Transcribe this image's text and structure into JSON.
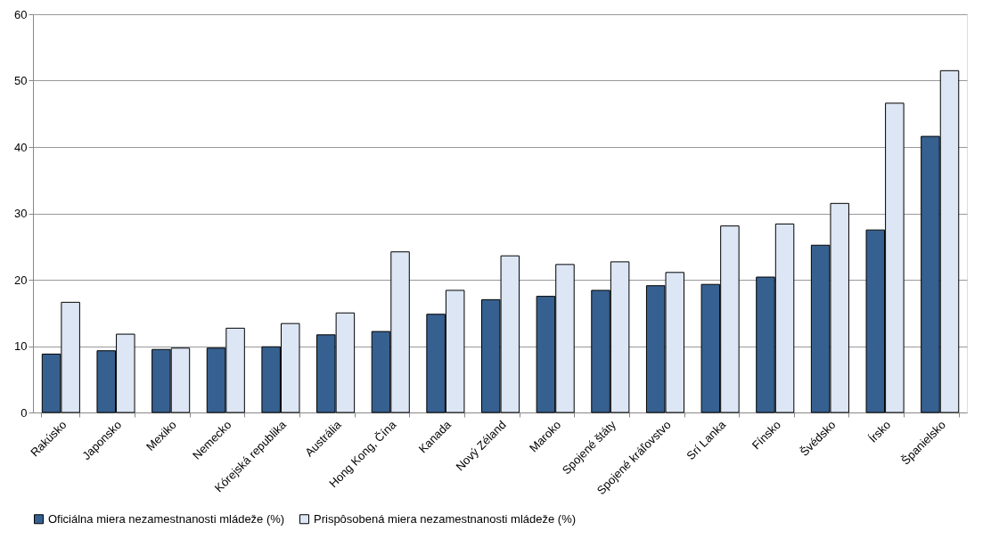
{
  "chart_data": {
    "type": "bar",
    "categories": [
      "Rakúsko",
      "Japonsko",
      "Mexiko",
      "Nemecko",
      "Kórejská republika",
      "Austrália",
      "Hong Kong, Čína",
      "Kanada",
      "Nový Zéland",
      "Maroko",
      "Spojené štáty",
      "Spojené kráľovstvo",
      "Srí Lanka",
      "Fínsko",
      "Švédsko",
      "Írsko",
      "Španielsko"
    ],
    "series": [
      {
        "name": "Oficiálna miera nezamestnanosti mládeže (%)",
        "color": "#36608f",
        "values": [
          8.8,
          9.3,
          9.5,
          9.7,
          9.9,
          11.7,
          12.2,
          14.8,
          17.0,
          17.5,
          18.4,
          19.1,
          19.3,
          20.4,
          25.2,
          27.5,
          41.6
        ]
      },
      {
        "name": "Prispôsobená miera nezamestnanosti mládeže (%)",
        "color": "#dce6f4",
        "values": [
          16.6,
          11.8,
          9.7,
          12.7,
          13.4,
          15.0,
          24.2,
          18.4,
          23.6,
          22.3,
          22.7,
          21.1,
          28.1,
          28.4,
          31.5,
          46.6,
          51.5
        ]
      }
    ],
    "ylim": [
      0,
      60
    ],
    "yticks": [
      0,
      10,
      20,
      30,
      40,
      50,
      60
    ],
    "grid": "y",
    "legend": "bottom"
  }
}
